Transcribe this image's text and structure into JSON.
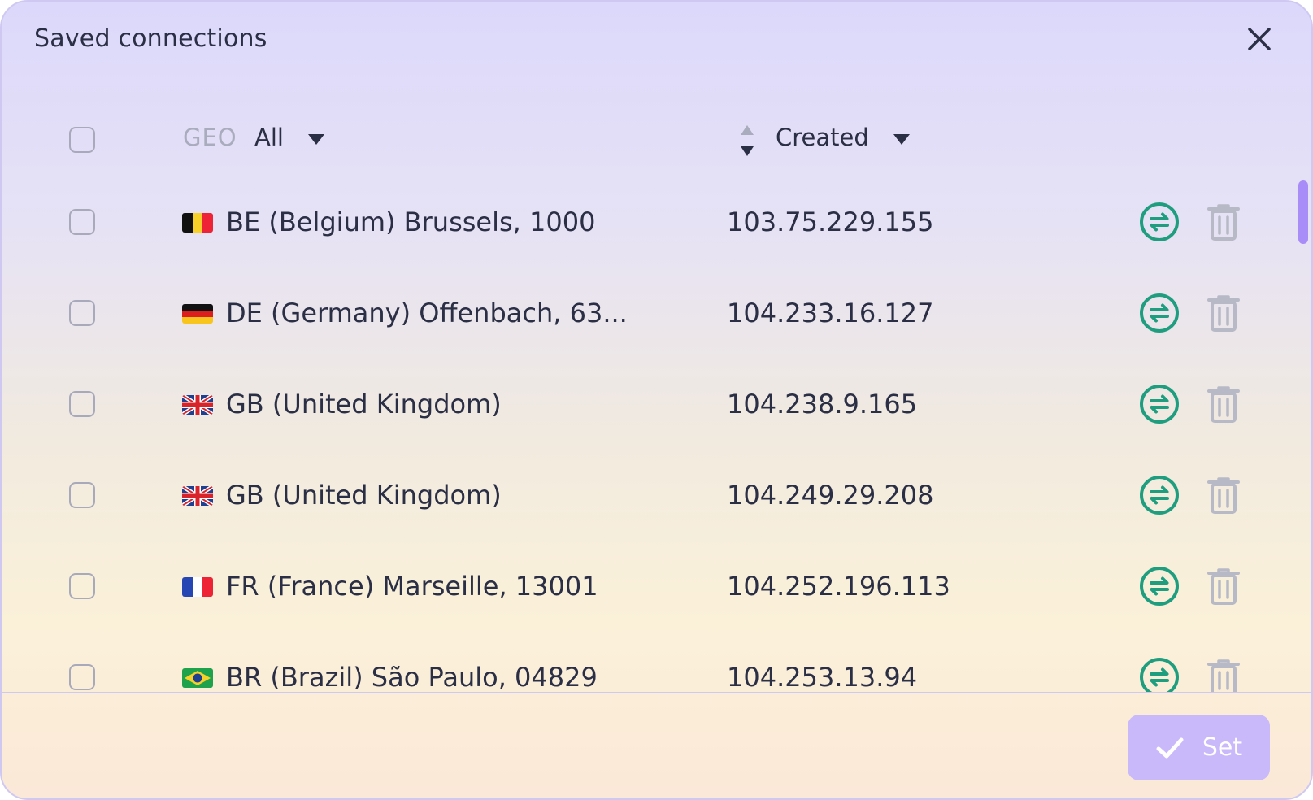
{
  "dialog": {
    "title": "Saved connections"
  },
  "header": {
    "geo_label": "GEO",
    "geo_value": "All",
    "sort_label": "Created"
  },
  "rows": [
    {
      "flag": "be-flag-icon",
      "location": "BE (Belgium) Brussels, 1000",
      "ip": "103.75.229.155"
    },
    {
      "flag": "de-flag-icon",
      "location": "DE (Germany) Offenbach, 63...",
      "ip": "104.233.16.127"
    },
    {
      "flag": "gb-flag-icon",
      "location": "GB (United Kingdom)",
      "ip": "104.238.9.165"
    },
    {
      "flag": "gb-flag-icon",
      "location": "GB (United Kingdom)",
      "ip": "104.249.29.208"
    },
    {
      "flag": "fr-flag-icon",
      "location": "FR (France) Marseille, 13001",
      "ip": "104.252.196.113"
    },
    {
      "flag": "br-flag-icon",
      "location": "BR (Brazil) São Paulo, 04829",
      "ip": "104.253.13.94"
    }
  ],
  "footer": {
    "set_label": "Set"
  },
  "colors": {
    "accent": "#a88cf7",
    "switch_icon": "#1f9e7f",
    "delete_icon": "#b7b9c6",
    "text": "#2b2f45",
    "set_button": "#c9b9fb"
  }
}
